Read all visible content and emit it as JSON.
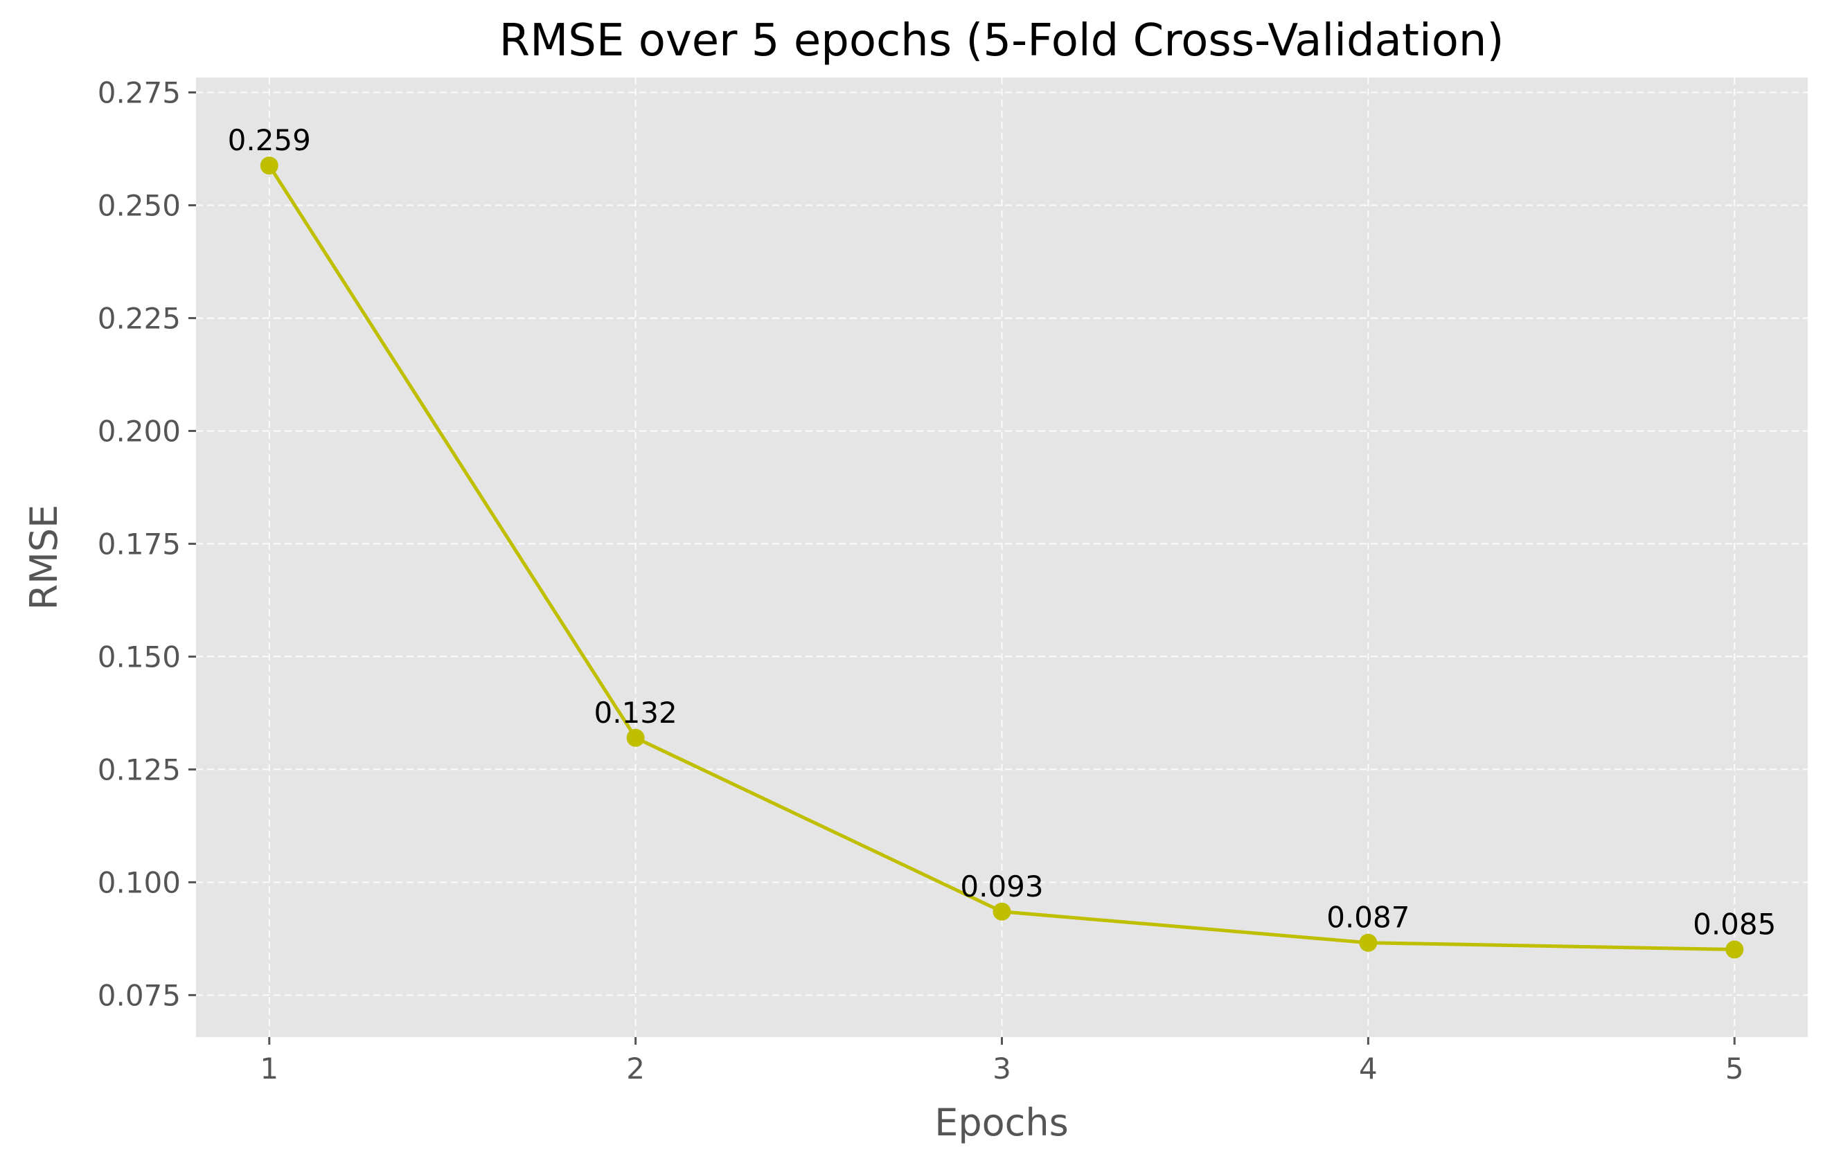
{
  "chart_data": {
    "type": "line",
    "title": "RMSE over 5 epochs (5-Fold Cross-Validation)",
    "xlabel": "Epochs",
    "ylabel": "RMSE",
    "x": [
      1,
      2,
      3,
      4,
      5
    ],
    "x_tick_labels": [
      "1",
      "2",
      "3",
      "4",
      "5"
    ],
    "series": [
      {
        "name": "RMSE",
        "values": [
          0.2588,
          0.132,
          0.0935,
          0.0866,
          0.0851
        ],
        "labels": [
          "0.259",
          "0.132",
          "0.093",
          "0.087",
          "0.085"
        ]
      }
    ],
    "xlim": [
      0.8,
      5.2
    ],
    "ylim": [
      0.0657,
      0.2783
    ],
    "y_ticks": [
      0.075,
      0.1,
      0.125,
      0.15,
      0.175,
      0.2,
      0.225,
      0.25,
      0.275
    ],
    "y_tick_labels": [
      "0.075",
      "0.100",
      "0.125",
      "0.150",
      "0.175",
      "0.200",
      "0.225",
      "0.250",
      "0.275"
    ],
    "grid": true,
    "colors": {
      "line": "#bfbf00",
      "plot_background": "#e5e5e5",
      "grid": "#ffffff"
    }
  }
}
